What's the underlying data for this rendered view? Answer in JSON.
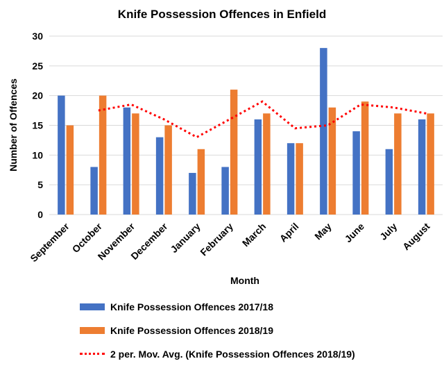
{
  "chart_data": {
    "type": "bar",
    "title": "Knife Possession Offences in Enfield",
    "xlabel": "Month",
    "ylabel": "Number of Offences",
    "ylim": [
      0,
      30
    ],
    "yticks": [
      0,
      5,
      10,
      15,
      20,
      25,
      30
    ],
    "grid": true,
    "legend_position": "bottom",
    "categories": [
      "September",
      "October",
      "November",
      "December",
      "January",
      "February",
      "March",
      "April",
      "May",
      "June",
      "July",
      "August"
    ],
    "series": [
      {
        "name": "Knife Possession Offences 2017/18",
        "type": "bar",
        "color": "#4472C4",
        "values": [
          20,
          8,
          18,
          13,
          7,
          8,
          16,
          12,
          28,
          14,
          11,
          16
        ]
      },
      {
        "name": "Knife Possession Offences 2018/19",
        "type": "bar",
        "color": "#ED7D31",
        "values": [
          15,
          20,
          17,
          15,
          11,
          21,
          17,
          12,
          18,
          19,
          17,
          17
        ]
      },
      {
        "name": "2 per. Mov. Avg. (Knife Possession Offences 2018/19)",
        "type": "line",
        "style": "dotted",
        "color": "#FF0000",
        "values": [
          null,
          17.5,
          18.5,
          16,
          13,
          16,
          19,
          14.5,
          15,
          18.5,
          18,
          17
        ]
      }
    ]
  }
}
